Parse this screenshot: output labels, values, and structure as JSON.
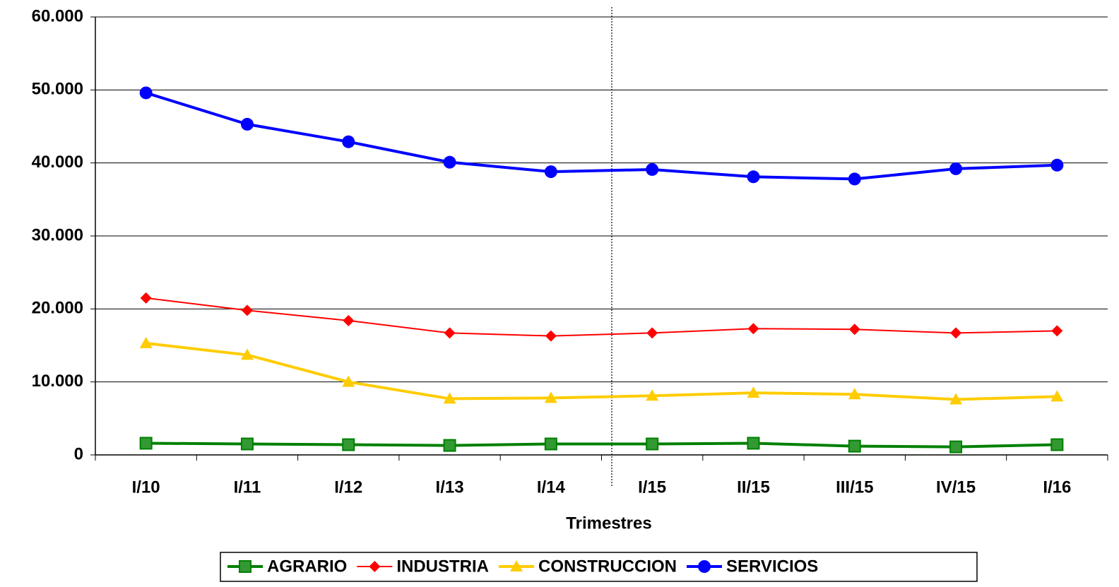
{
  "chart_data": {
    "type": "line",
    "x_label": "Trimestres",
    "categories": [
      "I/10",
      "I/11",
      "I/12",
      "I/13",
      "I/14",
      "I/15",
      "II/15",
      "III/15",
      "IV/15",
      "I/16"
    ],
    "series": [
      {
        "name": "AGRARIO",
        "color": "#008000",
        "marker": "square",
        "values": [
          1600,
          1500,
          1400,
          1300,
          1500,
          1500,
          1600,
          1200,
          1100,
          1400
        ]
      },
      {
        "name": "INDUSTRIA",
        "color": "#ff0000",
        "marker": "diamond",
        "values": [
          21500,
          19800,
          18400,
          16700,
          16300,
          16700,
          17300,
          17200,
          16700,
          17000
        ]
      },
      {
        "name": "CONSTRUCCION",
        "color": "#ffcc00",
        "marker": "triangle",
        "values": [
          15300,
          13700,
          10000,
          7700,
          7800,
          8100,
          8500,
          8300,
          7600,
          8000
        ]
      },
      {
        "name": "SERVICIOS",
        "color": "#0000ff",
        "marker": "circle",
        "values": [
          49600,
          45300,
          42900,
          40100,
          38800,
          39100,
          38100,
          37800,
          39200,
          39700
        ]
      }
    ],
    "ylim": [
      0,
      60000
    ],
    "yticks": [
      0,
      {
        "value": 10000,
        "label": "10.000"
      },
      {
        "value": 20000,
        "label": "20.000"
      },
      {
        "value": 30000,
        "label": "30.000"
      },
      {
        "value": 40000,
        "label": "40.000"
      },
      {
        "value": 50000,
        "label": "50.000"
      },
      {
        "value": 60000,
        "label": "60.000"
      }
    ],
    "grid": true
  }
}
